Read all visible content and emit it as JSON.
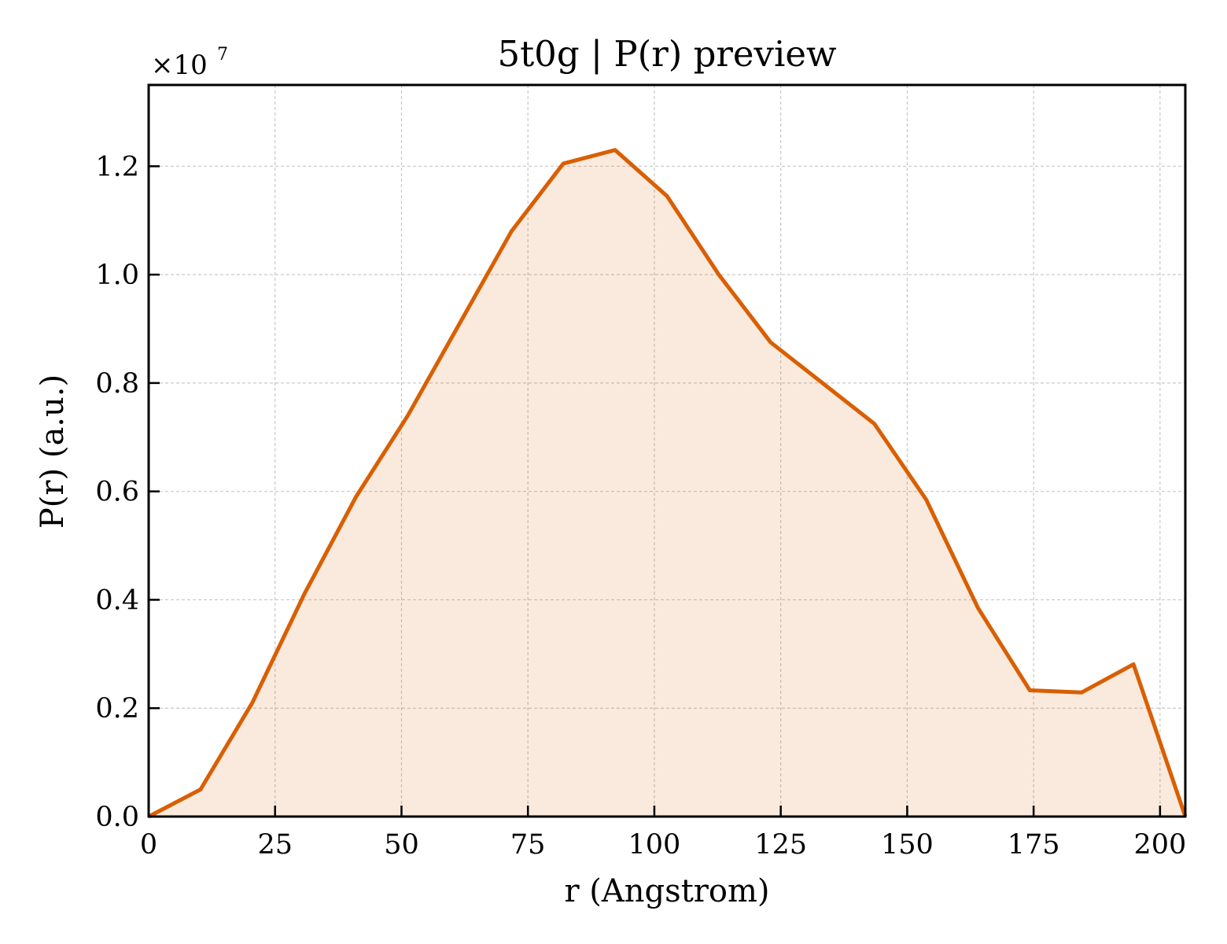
{
  "chart_data": {
    "type": "area",
    "title": "5t0g | P(r) preview",
    "xlabel": "r (Angstrom)",
    "ylabel": "P(r) (a.u.)",
    "y_offset_base": "×10",
    "y_offset_exp": "7",
    "xlim": [
      0,
      205
    ],
    "ylim": [
      0,
      1.35
    ],
    "xticks": [
      0,
      25,
      50,
      75,
      100,
      125,
      150,
      175,
      200
    ],
    "xtick_labels": [
      "0",
      "25",
      "50",
      "75",
      "100",
      "125",
      "150",
      "175",
      "200"
    ],
    "yticks": [
      0.0,
      0.2,
      0.4,
      0.6,
      0.8,
      1.0,
      1.2
    ],
    "ytick_labels": [
      "0.0",
      "0.2",
      "0.4",
      "0.6",
      "0.8",
      "1.0",
      "1.2"
    ],
    "grid": true,
    "series": [
      {
        "color": "#d95f02",
        "x": [
          0,
          10.25,
          20.5,
          30.75,
          41,
          51.25,
          61.5,
          71.75,
          82,
          92.25,
          102.5,
          112.75,
          123,
          133.25,
          143.5,
          153.75,
          164,
          174.25,
          184.5,
          194.75,
          205
        ],
        "y": [
          0.0,
          0.05,
          0.21,
          0.41,
          0.59,
          0.74,
          0.91,
          1.08,
          1.205,
          1.23,
          1.145,
          1.0,
          0.875,
          0.8,
          0.725,
          0.585,
          0.385,
          0.233,
          0.229,
          0.281,
          0.0
        ]
      }
    ]
  }
}
